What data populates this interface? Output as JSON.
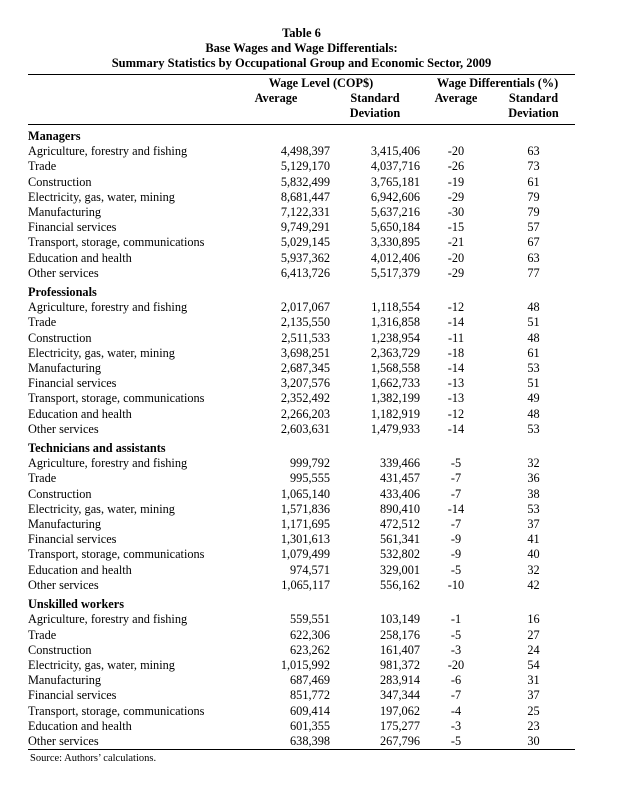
{
  "title": {
    "line1": "Table 6",
    "line2": "Base Wages and Wage Differentials:",
    "line3": "Summary Statistics by Occupational Group and Economic Sector, 2009"
  },
  "table": {
    "group_headers": [
      {
        "label": "Wage Level (COP$)"
      },
      {
        "label": "Wage Differentials (%)"
      }
    ],
    "sub_headers": [
      "Average",
      "Standard Deviation",
      "Average",
      "Standard Deviation"
    ],
    "sections": [
      {
        "name": "Managers",
        "rows": [
          {
            "sector": "Agriculture, forestry and fishing",
            "wage_avg": "4,498,397",
            "wage_sd": "3,415,406",
            "diff_avg": "-20",
            "diff_sd": "63"
          },
          {
            "sector": "Trade",
            "wage_avg": "5,129,170",
            "wage_sd": "4,037,716",
            "diff_avg": "-26",
            "diff_sd": "73"
          },
          {
            "sector": "Construction",
            "wage_avg": "5,832,499",
            "wage_sd": "3,765,181",
            "diff_avg": "-19",
            "diff_sd": "61"
          },
          {
            "sector": "Electricity, gas, water, mining",
            "wage_avg": "8,681,447",
            "wage_sd": "6,942,606",
            "diff_avg": "-29",
            "diff_sd": "79"
          },
          {
            "sector": "Manufacturing",
            "wage_avg": "7,122,331",
            "wage_sd": "5,637,216",
            "diff_avg": "-30",
            "diff_sd": "79"
          },
          {
            "sector": "Financial services",
            "wage_avg": "9,749,291",
            "wage_sd": "5,650,184",
            "diff_avg": "-15",
            "diff_sd": "57"
          },
          {
            "sector": "Transport, storage, communications",
            "wage_avg": "5,029,145",
            "wage_sd": "3,330,895",
            "diff_avg": "-21",
            "diff_sd": "67"
          },
          {
            "sector": "Education and health",
            "wage_avg": "5,937,362",
            "wage_sd": "4,012,406",
            "diff_avg": "-20",
            "diff_sd": "63"
          },
          {
            "sector": "Other services",
            "wage_avg": "6,413,726",
            "wage_sd": "5,517,379",
            "diff_avg": "-29",
            "diff_sd": "77"
          }
        ]
      },
      {
        "name": "Professionals",
        "rows": [
          {
            "sector": "Agriculture, forestry and fishing",
            "wage_avg": "2,017,067",
            "wage_sd": "1,118,554",
            "diff_avg": "-12",
            "diff_sd": "48"
          },
          {
            "sector": "Trade",
            "wage_avg": "2,135,550",
            "wage_sd": "1,316,858",
            "diff_avg": "-14",
            "diff_sd": "51"
          },
          {
            "sector": "Construction",
            "wage_avg": "2,511,533",
            "wage_sd": "1,238,954",
            "diff_avg": "-11",
            "diff_sd": "48"
          },
          {
            "sector": "Electricity, gas, water, mining",
            "wage_avg": "3,698,251",
            "wage_sd": "2,363,729",
            "diff_avg": "-18",
            "diff_sd": "61"
          },
          {
            "sector": "Manufacturing",
            "wage_avg": "2,687,345",
            "wage_sd": "1,568,558",
            "diff_avg": "-14",
            "diff_sd": "53"
          },
          {
            "sector": "Financial services",
            "wage_avg": "3,207,576",
            "wage_sd": "1,662,733",
            "diff_avg": "-13",
            "diff_sd": "51"
          },
          {
            "sector": "Transport, storage, communications",
            "wage_avg": "2,352,492",
            "wage_sd": "1,382,199",
            "diff_avg": "-13",
            "diff_sd": "49"
          },
          {
            "sector": "Education and health",
            "wage_avg": "2,266,203",
            "wage_sd": "1,182,919",
            "diff_avg": "-12",
            "diff_sd": "48"
          },
          {
            "sector": "Other services",
            "wage_avg": "2,603,631",
            "wage_sd": "1,479,933",
            "diff_avg": "-14",
            "diff_sd": "53"
          }
        ]
      },
      {
        "name": "Technicians and assistants",
        "rows": [
          {
            "sector": "Agriculture, forestry and fishing",
            "wage_avg": "999,792",
            "wage_sd": "339,466",
            "diff_avg": "-5",
            "diff_sd": "32"
          },
          {
            "sector": "Trade",
            "wage_avg": "995,555",
            "wage_sd": "431,457",
            "diff_avg": "-7",
            "diff_sd": "36"
          },
          {
            "sector": "Construction",
            "wage_avg": "1,065,140",
            "wage_sd": "433,406",
            "diff_avg": "-7",
            "diff_sd": "38"
          },
          {
            "sector": "Electricity, gas, water, mining",
            "wage_avg": "1,571,836",
            "wage_sd": "890,410",
            "diff_avg": "-14",
            "diff_sd": "53"
          },
          {
            "sector": "Manufacturing",
            "wage_avg": "1,171,695",
            "wage_sd": "472,512",
            "diff_avg": "-7",
            "diff_sd": "37"
          },
          {
            "sector": "Financial services",
            "wage_avg": "1,301,613",
            "wage_sd": "561,341",
            "diff_avg": "-9",
            "diff_sd": "41"
          },
          {
            "sector": "Transport, storage, communications",
            "wage_avg": "1,079,499",
            "wage_sd": "532,802",
            "diff_avg": "-9",
            "diff_sd": "40"
          },
          {
            "sector": "Education and health",
            "wage_avg": "974,571",
            "wage_sd": "329,001",
            "diff_avg": "-5",
            "diff_sd": "32"
          },
          {
            "sector": "Other services",
            "wage_avg": "1,065,117",
            "wage_sd": "556,162",
            "diff_avg": "-10",
            "diff_sd": "42"
          }
        ]
      },
      {
        "name": "Unskilled workers",
        "rows": [
          {
            "sector": "Agriculture, forestry and fishing",
            "wage_avg": "559,551",
            "wage_sd": "103,149",
            "diff_avg": "-1",
            "diff_sd": "16"
          },
          {
            "sector": "Trade",
            "wage_avg": "622,306",
            "wage_sd": "258,176",
            "diff_avg": "-5",
            "diff_sd": "27"
          },
          {
            "sector": "Construction",
            "wage_avg": "623,262",
            "wage_sd": "161,407",
            "diff_avg": "-3",
            "diff_sd": "24"
          },
          {
            "sector": "Electricity, gas, water, mining",
            "wage_avg": "1,015,992",
            "wage_sd": "981,372",
            "diff_avg": "-20",
            "diff_sd": "54"
          },
          {
            "sector": "Manufacturing",
            "wage_avg": "687,469",
            "wage_sd": "283,914",
            "diff_avg": "-6",
            "diff_sd": "31"
          },
          {
            "sector": "Financial services",
            "wage_avg": "851,772",
            "wage_sd": "347,344",
            "diff_avg": "-7",
            "diff_sd": "37"
          },
          {
            "sector": "Transport, storage, communications",
            "wage_avg": "609,414",
            "wage_sd": "197,062",
            "diff_avg": "-4",
            "diff_sd": "25"
          },
          {
            "sector": "Education and health",
            "wage_avg": "601,355",
            "wage_sd": "175,277",
            "diff_avg": "-3",
            "diff_sd": "23"
          },
          {
            "sector": "Other services",
            "wage_avg": "638,398",
            "wage_sd": "267,796",
            "diff_avg": "-5",
            "diff_sd": "30"
          }
        ]
      }
    ]
  },
  "source": "Source: Authors’ calculations."
}
